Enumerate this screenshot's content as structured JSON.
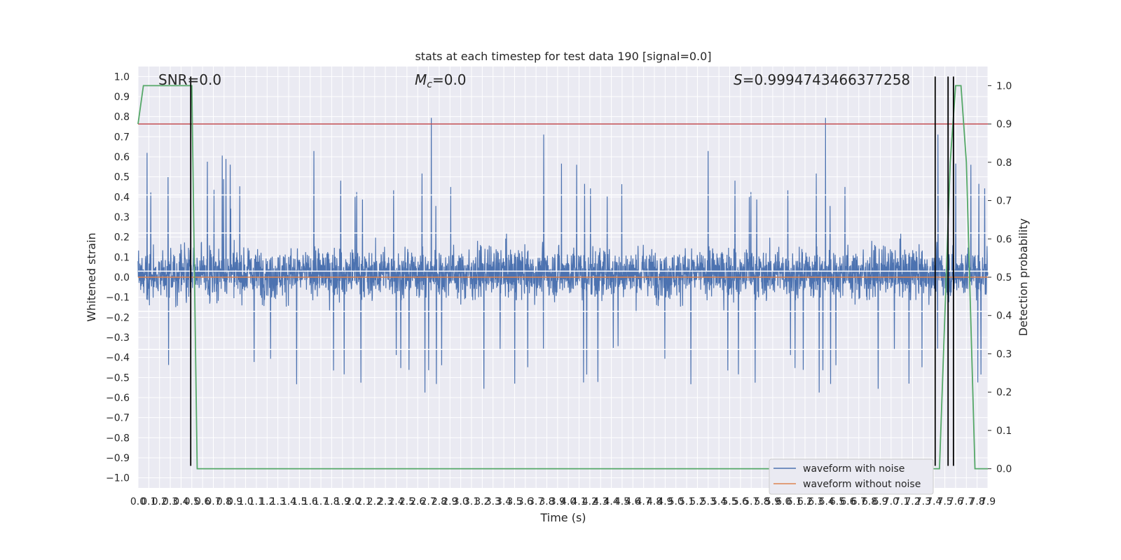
{
  "chart_data": {
    "type": "line",
    "title": "stats at each timestep for test data 190 [signal=0.0]",
    "xlabel": "Time (s)",
    "ylabel_left": "Whitened strain",
    "ylabel_right": "Detection probability",
    "xlim": [
      0.0,
      7.9
    ],
    "ylim_left": [
      -1.05,
      1.05
    ],
    "ylim_right": [
      -0.05,
      1.05
    ],
    "grid": true,
    "legend_placement": "lower-right",
    "x_ticks": [
      "0.0",
      "0.1",
      "0.2",
      "0.3",
      "0.4",
      "0.5",
      "0.6",
      "0.7",
      "0.8",
      "0.9",
      "1.0",
      "1.1",
      "1.2",
      "1.3",
      "1.4",
      "1.5",
      "1.6",
      "1.7",
      "1.8",
      "1.9",
      "2.0",
      "2.1",
      "2.2",
      "2.3",
      "2.4",
      "2.5",
      "2.6",
      "2.7",
      "2.8",
      "2.9",
      "3.0",
      "3.1",
      "3.2",
      "3.3",
      "3.4",
      "3.5",
      "3.6",
      "3.7",
      "3.8",
      "3.9",
      "4.0",
      "4.1",
      "4.2",
      "4.3",
      "4.4",
      "4.5",
      "4.6",
      "4.7",
      "4.8",
      "4.9",
      "5.0",
      "5.1",
      "5.2",
      "5.3",
      "5.4",
      "5.5",
      "5.6",
      "5.7",
      "5.8",
      "5.9",
      "6.0",
      "6.1",
      "6.2",
      "6.3",
      "6.4",
      "6.5",
      "6.6",
      "6.7",
      "6.8",
      "6.9",
      "7.0",
      "7.1",
      "7.2",
      "7.3",
      "7.4",
      "7.5",
      "7.6",
      "7.7",
      "7.8",
      "7.9"
    ],
    "y_ticks_left": [
      "1.0",
      "0.9",
      "0.8",
      "0.7",
      "0.6",
      "0.5",
      "0.4",
      "0.3",
      "0.2",
      "0.1",
      "0.0",
      "−0.1",
      "−0.2",
      "−0.3",
      "−0.4",
      "−0.5",
      "−0.6",
      "−0.7",
      "−0.8",
      "−0.9",
      "−1.0"
    ],
    "y_ticks_right": [
      "1.0",
      "0.9",
      "0.8",
      "0.7",
      "0.6",
      "0.5",
      "0.4",
      "0.3",
      "0.2",
      "0.1",
      "0.0"
    ],
    "annotations": {
      "snr": "SNR=0.0",
      "mc": "=0.0",
      "mc_symbol": "M",
      "mc_sub": "c",
      "s": "=0.9994743466377258",
      "s_symbol": "S"
    },
    "series": [
      {
        "name": "waveform with noise",
        "color": "#4c72b0",
        "kind": "noise",
        "y_range": [
          -0.95,
          1.0
        ]
      },
      {
        "name": "waveform without noise",
        "color": "#dd8452",
        "kind": "flat",
        "y": 0.0
      }
    ],
    "detection_probability": {
      "color": "#55a868",
      "x": [
        0.0,
        0.05,
        0.5,
        0.51,
        0.55,
        0.6,
        0.65,
        7.45,
        7.55,
        7.6,
        7.65,
        7.7,
        7.78,
        7.9
      ],
      "y": [
        0.9,
        1.0,
        1.0,
        0.8,
        0.0,
        0.0,
        0.0,
        0.0,
        0.8,
        1.0,
        1.0,
        0.8,
        0.0,
        0.0
      ]
    },
    "threshold": {
      "color": "#c44e52",
      "y_right": 0.9
    },
    "vertical_markers": {
      "color": "#000000",
      "x": [
        0.49,
        7.41,
        7.53,
        7.58
      ],
      "y_range_left": [
        -0.94,
        1.0
      ]
    },
    "white_bands_left": [
      0.41,
      0.22,
      0.03,
      -0.17,
      -0.36
    ]
  }
}
